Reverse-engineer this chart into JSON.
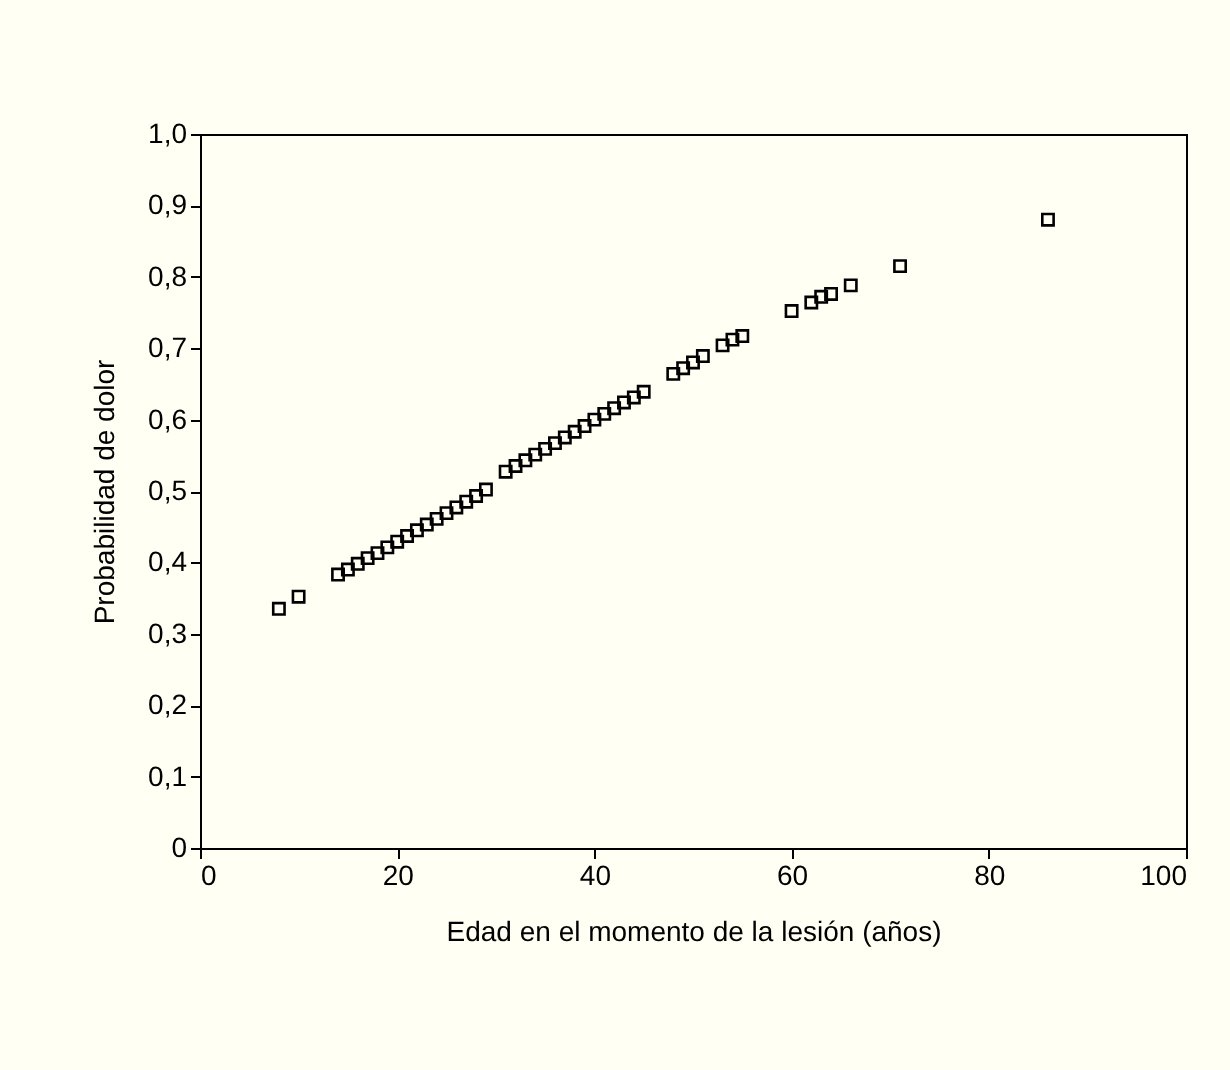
{
  "chart_data": {
    "type": "scatter",
    "xlabel": "Edad en el momento de la lesión (años)",
    "ylabel": "Probabilidad de dolor",
    "marker": "square",
    "grid": false,
    "legend": false,
    "xlim": [
      0,
      100
    ],
    "xticks": [
      0,
      20,
      40,
      60,
      80,
      100
    ],
    "ylim": [
      0,
      1
    ],
    "yticks": [
      {
        "value": 0,
        "label": "0"
      },
      {
        "value": 0.1,
        "label": "0,1"
      },
      {
        "value": 0.2,
        "label": "0,2"
      },
      {
        "value": 0.3,
        "label": "0,3"
      },
      {
        "value": 0.4,
        "label": "0,4"
      },
      {
        "value": 0.5,
        "label": "0,5"
      },
      {
        "value": 0.6,
        "label": "0,6"
      },
      {
        "value": 0.7,
        "label": "0,7"
      },
      {
        "value": 0.8,
        "label": "0,8"
      },
      {
        "value": 0.9,
        "label": "0,9"
      },
      {
        "value": 1,
        "label": "1,0"
      }
    ],
    "series": [
      {
        "color": "#000000",
        "x": [
          8,
          10,
          14,
          15,
          16,
          17,
          18,
          19,
          20,
          21,
          22,
          23,
          24,
          25,
          26,
          27,
          28,
          29,
          31,
          32,
          33,
          34,
          35,
          36,
          37,
          38,
          39,
          40,
          41,
          42,
          43,
          44,
          45,
          48,
          49,
          50,
          51,
          53,
          54,
          55,
          60,
          62,
          63,
          64,
          66,
          71,
          86
        ],
        "values": [
          0.335,
          0.352,
          0.383,
          0.39,
          0.398,
          0.406,
          0.413,
          0.421,
          0.429,
          0.437,
          0.445,
          0.453,
          0.461,
          0.469,
          0.477,
          0.485,
          0.493,
          0.502,
          0.527,
          0.535,
          0.543,
          0.551,
          0.559,
          0.567,
          0.575,
          0.583,
          0.591,
          0.6,
          0.608,
          0.616,
          0.624,
          0.631,
          0.639,
          0.664,
          0.672,
          0.68,
          0.689,
          0.704,
          0.712,
          0.717,
          0.752,
          0.764,
          0.772,
          0.776,
          0.788,
          0.815,
          0.88
        ]
      }
    ]
  }
}
